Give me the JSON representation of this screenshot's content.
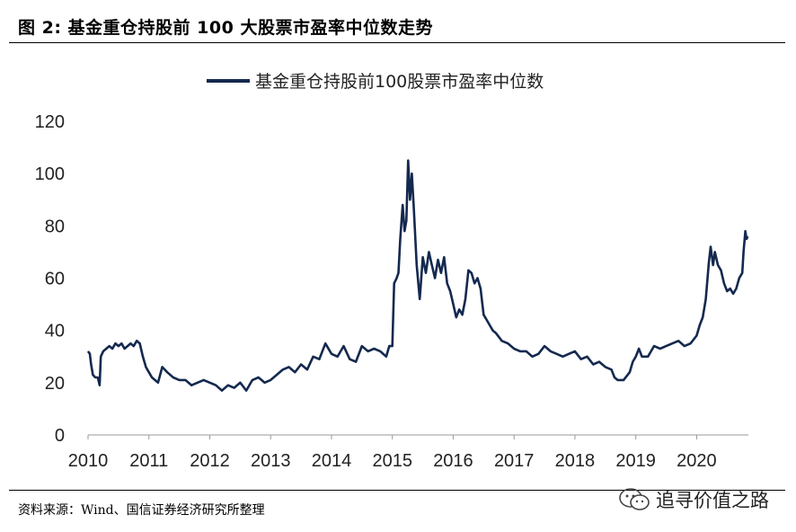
{
  "header": {
    "figure_title": "图 2: 基金重仓持股前 100 大股票市盈率中位数走势"
  },
  "footer": {
    "source": "资料来源：Wind、国信证券经济研究所整理",
    "watermark_text": "追寻价值之路",
    "watermark_icon": "wechat-icon"
  },
  "colors": {
    "series_line": "#14294f",
    "axis": "#999999"
  },
  "chart_data": {
    "type": "line",
    "legend": [
      "基金重仓持股前100股票市盈率中位数"
    ],
    "legend_position": "top-center",
    "ylim": [
      0,
      120
    ],
    "yticks": [
      0,
      20,
      40,
      60,
      80,
      100,
      120
    ],
    "xlim": [
      2010,
      2020.85
    ],
    "xticks": [
      "2010",
      "2011",
      "2012",
      "2013",
      "2014",
      "2015",
      "2016",
      "2017",
      "2018",
      "2019",
      "2020"
    ],
    "grid": false,
    "series": [
      {
        "name": "基金重仓持股前100股票市盈率中位数",
        "points": [
          [
            2010.0,
            32
          ],
          [
            2010.03,
            31
          ],
          [
            2010.05,
            27
          ],
          [
            2010.08,
            23
          ],
          [
            2010.12,
            22
          ],
          [
            2010.16,
            22
          ],
          [
            2010.19,
            19
          ],
          [
            2010.21,
            30
          ],
          [
            2010.25,
            32
          ],
          [
            2010.3,
            33
          ],
          [
            2010.35,
            34
          ],
          [
            2010.4,
            33
          ],
          [
            2010.45,
            35
          ],
          [
            2010.5,
            34
          ],
          [
            2010.55,
            35
          ],
          [
            2010.6,
            33
          ],
          [
            2010.65,
            34
          ],
          [
            2010.7,
            35
          ],
          [
            2010.75,
            34
          ],
          [
            2010.8,
            36
          ],
          [
            2010.85,
            35
          ],
          [
            2010.9,
            30
          ],
          [
            2010.95,
            26
          ],
          [
            2011.0,
            24
          ],
          [
            2011.05,
            22
          ],
          [
            2011.1,
            21
          ],
          [
            2011.15,
            20
          ],
          [
            2011.22,
            26
          ],
          [
            2011.3,
            24
          ],
          [
            2011.4,
            22
          ],
          [
            2011.5,
            21
          ],
          [
            2011.6,
            21
          ],
          [
            2011.7,
            19
          ],
          [
            2011.8,
            20
          ],
          [
            2011.9,
            21
          ],
          [
            2012.0,
            20
          ],
          [
            2012.1,
            19
          ],
          [
            2012.2,
            17
          ],
          [
            2012.3,
            19
          ],
          [
            2012.4,
            18
          ],
          [
            2012.5,
            20
          ],
          [
            2012.6,
            17
          ],
          [
            2012.7,
            21
          ],
          [
            2012.8,
            22
          ],
          [
            2012.9,
            20
          ],
          [
            2013.0,
            21
          ],
          [
            2013.1,
            23
          ],
          [
            2013.2,
            25
          ],
          [
            2013.3,
            26
          ],
          [
            2013.4,
            24
          ],
          [
            2013.5,
            27
          ],
          [
            2013.6,
            25
          ],
          [
            2013.7,
            30
          ],
          [
            2013.8,
            29
          ],
          [
            2013.9,
            35
          ],
          [
            2014.0,
            31
          ],
          [
            2014.1,
            30
          ],
          [
            2014.2,
            34
          ],
          [
            2014.3,
            29
          ],
          [
            2014.4,
            28
          ],
          [
            2014.5,
            34
          ],
          [
            2014.6,
            32
          ],
          [
            2014.7,
            33
          ],
          [
            2014.8,
            32
          ],
          [
            2014.9,
            30
          ],
          [
            2014.95,
            34
          ],
          [
            2015.0,
            34
          ],
          [
            2015.03,
            58
          ],
          [
            2015.07,
            60
          ],
          [
            2015.1,
            62
          ],
          [
            2015.13,
            75
          ],
          [
            2015.17,
            88
          ],
          [
            2015.2,
            78
          ],
          [
            2015.23,
            82
          ],
          [
            2015.26,
            105
          ],
          [
            2015.29,
            90
          ],
          [
            2015.32,
            100
          ],
          [
            2015.35,
            88
          ],
          [
            2015.4,
            65
          ],
          [
            2015.45,
            52
          ],
          [
            2015.5,
            68
          ],
          [
            2015.55,
            62
          ],
          [
            2015.6,
            70
          ],
          [
            2015.65,
            65
          ],
          [
            2015.7,
            60
          ],
          [
            2015.75,
            67
          ],
          [
            2015.8,
            62
          ],
          [
            2015.85,
            68
          ],
          [
            2015.9,
            58
          ],
          [
            2015.95,
            55
          ],
          [
            2016.0,
            50
          ],
          [
            2016.05,
            45
          ],
          [
            2016.1,
            48
          ],
          [
            2016.15,
            46
          ],
          [
            2016.2,
            52
          ],
          [
            2016.25,
            63
          ],
          [
            2016.3,
            62
          ],
          [
            2016.35,
            58
          ],
          [
            2016.4,
            60
          ],
          [
            2016.45,
            56
          ],
          [
            2016.5,
            46
          ],
          [
            2016.55,
            44
          ],
          [
            2016.6,
            42
          ],
          [
            2016.65,
            40
          ],
          [
            2016.7,
            39
          ],
          [
            2016.8,
            36
          ],
          [
            2016.9,
            35
          ],
          [
            2017.0,
            33
          ],
          [
            2017.1,
            32
          ],
          [
            2017.2,
            32
          ],
          [
            2017.3,
            30
          ],
          [
            2017.4,
            31
          ],
          [
            2017.5,
            34
          ],
          [
            2017.6,
            32
          ],
          [
            2017.7,
            31
          ],
          [
            2017.8,
            30
          ],
          [
            2017.9,
            31
          ],
          [
            2018.0,
            32
          ],
          [
            2018.1,
            29
          ],
          [
            2018.2,
            30
          ],
          [
            2018.3,
            27
          ],
          [
            2018.4,
            28
          ],
          [
            2018.5,
            26
          ],
          [
            2018.6,
            25
          ],
          [
            2018.65,
            22
          ],
          [
            2018.7,
            21
          ],
          [
            2018.8,
            21
          ],
          [
            2018.9,
            24
          ],
          [
            2018.95,
            28
          ],
          [
            2019.0,
            30
          ],
          [
            2019.05,
            33
          ],
          [
            2019.1,
            30
          ],
          [
            2019.2,
            30
          ],
          [
            2019.3,
            34
          ],
          [
            2019.4,
            33
          ],
          [
            2019.5,
            34
          ],
          [
            2019.6,
            35
          ],
          [
            2019.7,
            36
          ],
          [
            2019.8,
            34
          ],
          [
            2019.9,
            35
          ],
          [
            2020.0,
            38
          ],
          [
            2020.05,
            42
          ],
          [
            2020.1,
            45
          ],
          [
            2020.15,
            52
          ],
          [
            2020.2,
            66
          ],
          [
            2020.23,
            72
          ],
          [
            2020.27,
            65
          ],
          [
            2020.3,
            70
          ],
          [
            2020.35,
            65
          ],
          [
            2020.4,
            63
          ],
          [
            2020.45,
            58
          ],
          [
            2020.5,
            55
          ],
          [
            2020.55,
            56
          ],
          [
            2020.6,
            54
          ],
          [
            2020.65,
            56
          ],
          [
            2020.7,
            60
          ],
          [
            2020.75,
            62
          ],
          [
            2020.77,
            70
          ],
          [
            2020.8,
            78
          ],
          [
            2020.82,
            75
          ],
          [
            2020.84,
            76
          ]
        ]
      }
    ]
  }
}
